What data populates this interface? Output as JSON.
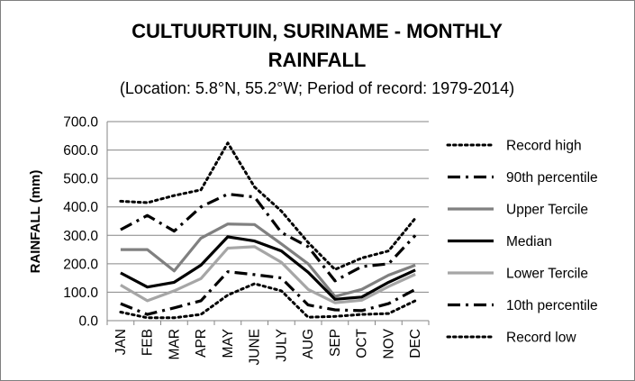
{
  "chart_data": {
    "type": "line",
    "title_line1": "CULTUURTUIN, SURINAME - MONTHLY",
    "title_line2": "RAINFALL",
    "subtitle": "(Location: 5.8°N, 55.2°W; Period of record: 1979-2014)",
    "xlabel": "",
    "ylabel": "RAINFALL (mm)",
    "ylim": [
      0,
      700
    ],
    "yticks": [
      "0.0",
      "100.0",
      "200.0",
      "300.0",
      "400.0",
      "500.0",
      "600.0",
      "700.0"
    ],
    "categories": [
      "JAN",
      "FEB",
      "MAR",
      "APR",
      "MAY",
      "JUNE",
      "JULY",
      "AUG",
      "SEP",
      "OCT",
      "NOV",
      "DEC"
    ],
    "grid": "horizontal",
    "legend_position": "right",
    "series": [
      {
        "name": "Record high",
        "color": "#000000",
        "style": "dotted",
        "values": [
          420,
          415,
          440,
          460,
          625,
          470,
          385,
          275,
          180,
          220,
          245,
          360
        ]
      },
      {
        "name": "90th percentile",
        "color": "#000000",
        "style": "dashdot",
        "values": [
          320,
          370,
          315,
          400,
          445,
          435,
          310,
          260,
          140,
          190,
          200,
          300
        ]
      },
      {
        "name": "Upper Tercile",
        "color": "#808080",
        "style": "solid",
        "values": [
          250,
          250,
          175,
          290,
          340,
          338,
          270,
          200,
          85,
          110,
          160,
          195
        ]
      },
      {
        "name": "Median",
        "color": "#000000",
        "style": "solid",
        "values": [
          168,
          118,
          135,
          195,
          295,
          280,
          245,
          170,
          75,
          83,
          135,
          178
        ]
      },
      {
        "name": "Lower Tercile",
        "color": "#a6a6a6",
        "style": "solid",
        "values": [
          125,
          70,
          105,
          148,
          255,
          260,
          205,
          110,
          63,
          72,
          120,
          163
        ]
      },
      {
        "name": "10th percentile",
        "color": "#000000",
        "style": "dashdot",
        "values": [
          60,
          22,
          45,
          70,
          172,
          162,
          150,
          55,
          38,
          35,
          60,
          110
        ]
      },
      {
        "name": "Record low",
        "color": "#000000",
        "style": "dotted",
        "values": [
          30,
          10,
          10,
          22,
          90,
          130,
          105,
          12,
          15,
          22,
          25,
          70
        ]
      }
    ]
  }
}
